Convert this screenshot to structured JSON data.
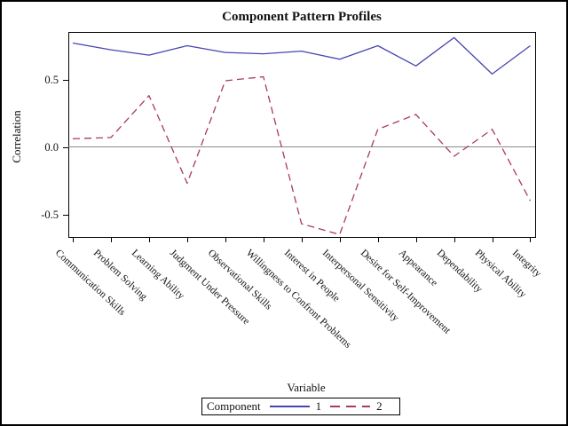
{
  "figure": {
    "title": "Component Pattern Profiles",
    "y_axis_title": "Correlation",
    "x_axis_title": "Variable",
    "legend_title": "Component"
  },
  "colors": {
    "component1": "#4646b0",
    "component2": "#aa3a5c",
    "zero_line": "#8a8a8a",
    "frame": "#000000",
    "background": "#ffffff"
  },
  "chart_data": {
    "type": "line",
    "title": "Component Pattern Profiles",
    "xlabel": "Variable",
    "ylabel": "Correlation",
    "ylim": [
      -0.67,
      0.85
    ],
    "grid": false,
    "reference_line_y": 0,
    "legend_position": "bottom",
    "legend_title": "Component",
    "yticks": [
      {
        "value": 0.5,
        "label": "0.5"
      },
      {
        "value": 0.0,
        "label": "0.0"
      },
      {
        "value": -0.5,
        "label": "-0.5"
      }
    ],
    "categories": [
      "Communication Skills",
      "Problem Solving",
      "Learning Ability",
      "Judgment Under Pressure",
      "Observational Skills",
      "Willingness to Confront Problems",
      "Interest in People",
      "Interpersonal Sensitivity",
      "Desire for Self-Improvement",
      "Appearance",
      "Dependability",
      "Physical Ability",
      "Integrity"
    ],
    "series": [
      {
        "name": "1",
        "style": "solid",
        "color": "#4646b0",
        "values": [
          0.77,
          0.72,
          0.68,
          0.75,
          0.7,
          0.69,
          0.71,
          0.65,
          0.75,
          0.6,
          0.81,
          0.54,
          0.75
        ]
      },
      {
        "name": "2",
        "style": "dashed",
        "color": "#aa3a5c",
        "values": [
          0.06,
          0.07,
          0.38,
          -0.27,
          0.49,
          0.52,
          -0.57,
          -0.65,
          0.13,
          0.24,
          -0.07,
          0.13,
          -0.4
        ]
      }
    ]
  }
}
